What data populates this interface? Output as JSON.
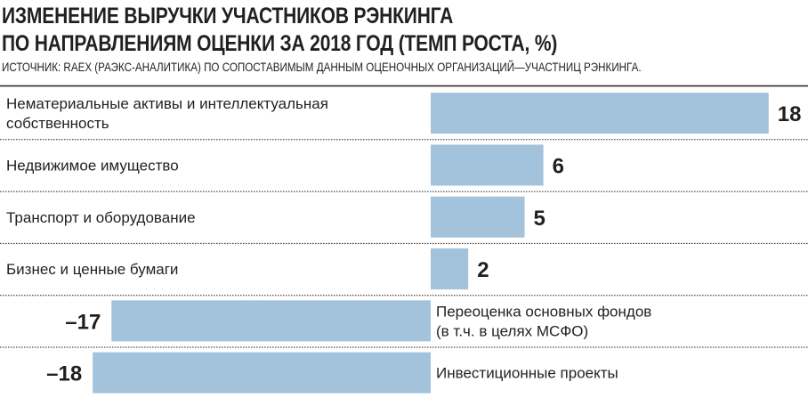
{
  "title_lines": [
    "ИЗМЕНЕНИЕ ВЫРУЧКИ УЧАСТНИКОВ РЭНКИНГА",
    "ПО НАПРАВЛЕНИЯМ ОЦЕНКИ ЗА 2018 ГОД (ТЕМП РОСТА, %)"
  ],
  "source": "ИСТОЧНИК: RAEX (РАЭКС-АНАЛИТИКА) ПО СОПОСТАВИМЫМ ДАННЫМ ОЦЕНОЧНЫХ ОРГАНИЗАЦИЙ—УЧАСТНИЦ РЭНКИНГА.",
  "colors": {
    "bar": "#a3c2dc",
    "text": "#231f20",
    "divider": "#231f20"
  },
  "chart_data": {
    "type": "bar",
    "orientation": "horizontal",
    "title": "ИЗМЕНЕНИЕ ВЫРУЧКИ УЧАСТНИКОВ РЭНКИНГА ПО НАПРАВЛЕНИЯМ ОЦЕНКИ ЗА 2018 ГОД (ТЕМП РОСТА, %)",
    "categories": [
      [
        "Нематериальные активы и интеллектуальная",
        "собственность"
      ],
      [
        "Недвижимое имущество"
      ],
      [
        "Транспорт и оборудование"
      ],
      [
        "Бизнес и ценные бумаги"
      ],
      [
        "Переоценка основных фондов",
        "(в т.ч. в целях МСФО)"
      ],
      [
        "Инвестиционные проекты"
      ]
    ],
    "values": [
      18,
      6,
      5,
      2,
      -17,
      -18
    ],
    "value_labels": [
      "18",
      "6",
      "5",
      "2",
      "–17",
      "–18"
    ],
    "grid": false,
    "legend": "none"
  }
}
